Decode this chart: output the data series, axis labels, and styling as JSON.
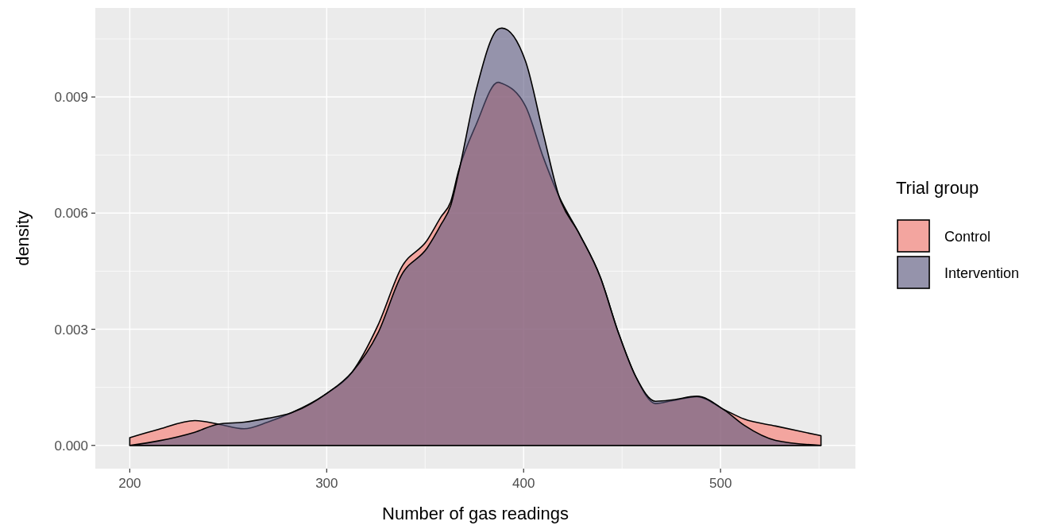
{
  "chart_data": {
    "type": "area",
    "xlabel": "Number of gas readings",
    "ylabel": "density",
    "legend_title": "Trial group",
    "x": [
      200,
      215,
      233,
      245,
      258,
      270,
      282,
      300,
      313,
      326,
      338,
      351,
      358,
      363,
      367,
      376,
      387,
      389,
      401,
      410,
      418,
      428,
      439,
      448,
      457,
      467,
      476,
      488,
      502,
      512,
      528,
      551
    ],
    "series": [
      {
        "name": "Control",
        "color": "#f8766d",
        "values": [
          0.0002,
          0.00042,
          0.00064,
          0.00055,
          0.00043,
          0.0006,
          0.00084,
          0.00134,
          0.0019,
          0.0031,
          0.0046,
          0.0053,
          0.0059,
          0.0063,
          0.0071,
          0.0083,
          0.00938,
          0.00935,
          0.00876,
          0.00744,
          0.00643,
          0.00549,
          0.00434,
          0.00293,
          0.00177,
          0.00108,
          0.00116,
          0.00126,
          0.00092,
          0.00068,
          0.0005,
          0.00025
        ]
      },
      {
        "name": "Intervention",
        "color": "#5b5880",
        "values": [
          0,
          0.00012,
          0.00034,
          0.00055,
          0.0006,
          0.0007,
          0.00084,
          0.00134,
          0.0019,
          0.0029,
          0.0044,
          0.0051,
          0.0057,
          0.0062,
          0.00705,
          0.0092,
          0.01075,
          0.01078,
          0.00992,
          0.00805,
          0.00643,
          0.00549,
          0.00434,
          0.00293,
          0.00177,
          0.00114,
          0.00118,
          0.00127,
          0.00091,
          0.00052,
          0.00013,
          0
        ]
      }
    ],
    "xlim": [
      182.5,
      568.5
    ],
    "ylim": [
      -0.0006,
      0.0113
    ],
    "xticks": [
      200,
      300,
      400,
      500
    ],
    "yticks": [
      {
        "value": 0,
        "label": "0.000"
      },
      {
        "value": 0.003,
        "label": "0.003"
      },
      {
        "value": 0.006,
        "label": "0.006"
      },
      {
        "value": 0.009,
        "label": "0.009"
      }
    ],
    "grid": true,
    "legend": "right"
  }
}
